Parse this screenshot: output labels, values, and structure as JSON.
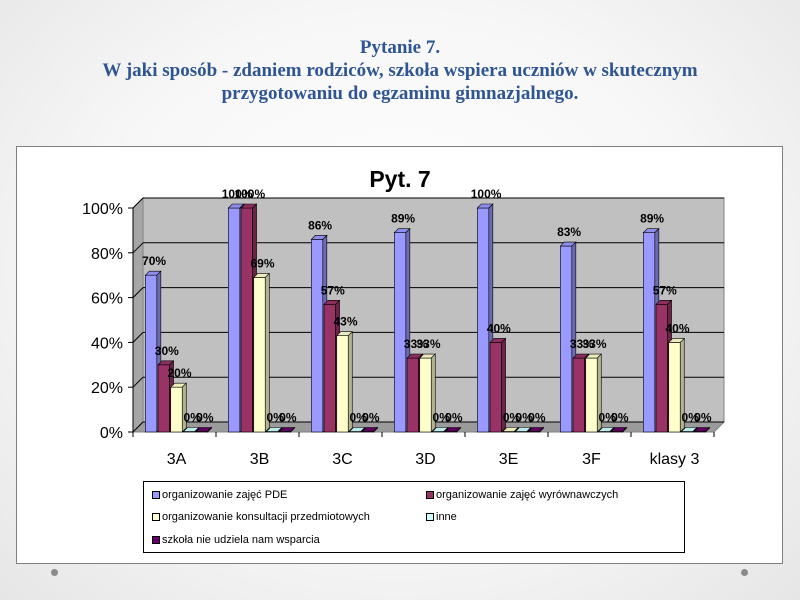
{
  "slide": {
    "title_line1": "Pytanie 7.",
    "title_line2": "W jaki sposób - zdaniem rodziców, szkoła wspiera uczniów w skutecznym",
    "title_line3": "przygotowaniu do egzaminu gimnazjalnego."
  },
  "chart_data": {
    "type": "bar",
    "title": "Pyt. 7",
    "categories": [
      "3A",
      "3B",
      "3C",
      "3D",
      "3E",
      "3F",
      "klasy 3"
    ],
    "ylim": [
      0,
      100
    ],
    "y_ticks": [
      "0%",
      "20%",
      "40%",
      "60%",
      "80%",
      "100%"
    ],
    "grid": true,
    "legend_placement": "bottom",
    "series": [
      {
        "name": "organizowanie zajęć PDE",
        "color": "#9999ff",
        "values": [
          70,
          100,
          86,
          89,
          100,
          83,
          89
        ],
        "labels": [
          "70%",
          "100%",
          "86%",
          "89%",
          "100%",
          "83%",
          "89%"
        ]
      },
      {
        "name": "organizowanie zajęć wyrównawczych",
        "color": "#993366",
        "values": [
          30,
          100,
          57,
          33,
          40,
          33,
          57
        ],
        "labels": [
          "30%",
          "100%",
          "57%",
          "33%",
          "40%",
          "33%",
          "57%"
        ]
      },
      {
        "name": "organizowanie konsultacji przedmiotowych",
        "color": "#ffffcc",
        "values": [
          20,
          69,
          43,
          33,
          0,
          33,
          40
        ],
        "labels": [
          "20%",
          "69%",
          "43%",
          "33%",
          "0%",
          "33%",
          "40%"
        ]
      },
      {
        "name": "inne",
        "color": "#ccffff",
        "values": [
          0,
          0,
          0,
          0,
          0,
          0,
          0
        ],
        "labels": [
          "0%",
          "0%",
          "0%",
          "0%",
          "0%",
          "0%",
          "0%"
        ]
      },
      {
        "name": "szkoła nie udziela nam wsparcia",
        "color": "#660066",
        "values": [
          0,
          0,
          0,
          0,
          0,
          0,
          0
        ],
        "labels": [
          "0%",
          "0%",
          "0%",
          "0%",
          "0%",
          "0%",
          "0%"
        ]
      }
    ]
  }
}
